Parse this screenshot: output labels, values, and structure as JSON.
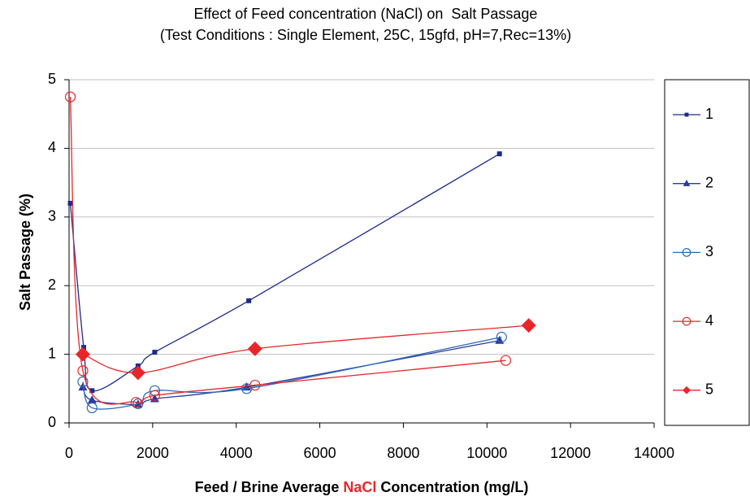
{
  "chart_data": {
    "type": "line",
    "title": [
      "Effect of Feed concentration (NaCl) on  Salt Passage",
      "(Test Conditions : Single Element, 25C, 15gfd, pH=7,Rec=13%)"
    ],
    "xlabel": [
      "Feed / Brine Average ",
      "NaCl",
      " Concentration (mg/L)"
    ],
    "xlabel_colors": [
      "#000000",
      "#e8262a",
      "#000000"
    ],
    "ylabel": "Salt Passage (%)",
    "xlim": [
      0,
      14000
    ],
    "xticks": [
      0,
      2000,
      4000,
      6000,
      8000,
      10000,
      12000,
      14000
    ],
    "ylim": [
      0,
      5
    ],
    "yticks": [
      0,
      1,
      2,
      3,
      4,
      5
    ],
    "grid": true,
    "smooth": true,
    "legend": "right",
    "series": [
      {
        "name": "1",
        "color": "#1c2a8c",
        "marker": "square",
        "x": [
          30,
          350,
          550,
          1650,
          2050,
          4300,
          10300
        ],
        "values": [
          3.2,
          1.1,
          0.47,
          0.83,
          1.03,
          1.78,
          3.92
        ]
      },
      {
        "name": "2",
        "color": "#2a3a9e",
        "marker": "triangle",
        "x": [
          330,
          550,
          1650,
          2050,
          4250,
          10300
        ],
        "values": [
          0.52,
          0.33,
          0.27,
          0.35,
          0.52,
          1.2
        ]
      },
      {
        "name": "3",
        "color": "#2a6ab5",
        "marker": "circle-open",
        "x": [
          330,
          550,
          1650,
          2050,
          4250,
          10350
        ],
        "values": [
          0.6,
          0.22,
          0.28,
          0.47,
          0.5,
          1.25
        ]
      },
      {
        "name": "4",
        "color": "#e8262a",
        "marker": "circle-open",
        "x": [
          30,
          330,
          1600,
          2050,
          4450,
          10450
        ],
        "values": [
          4.75,
          0.76,
          0.3,
          0.4,
          0.55,
          0.91
        ]
      },
      {
        "name": "5",
        "color": "#e8262a",
        "marker": "diamond",
        "x": [
          330,
          1650,
          4450,
          11000
        ],
        "values": [
          1.0,
          0.73,
          1.08,
          1.42
        ]
      }
    ]
  }
}
